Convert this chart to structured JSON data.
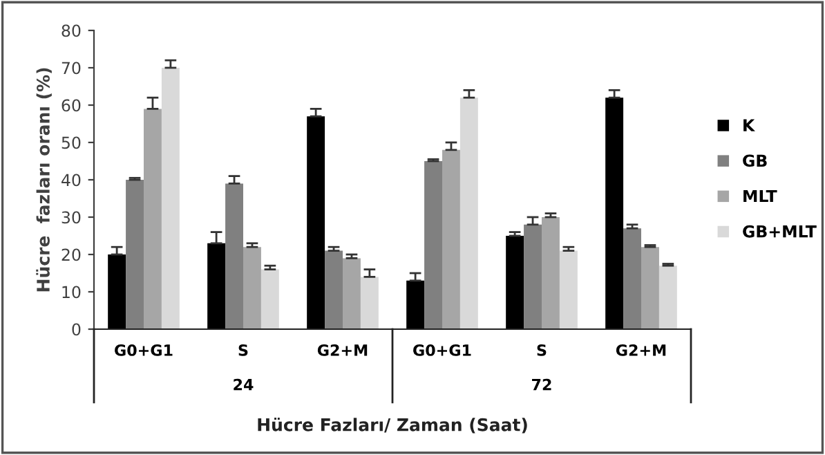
{
  "chart_data": {
    "type": "bar",
    "xlabel": "Hücre Fazları/ Zaman (Saat)",
    "ylabel": "Hücre  fazları oranı (%)",
    "categories": [
      "G0+G1",
      "S",
      "G2+M",
      "G0+G1",
      "S",
      "G2+M"
    ],
    "annotations": [
      "24",
      "72"
    ],
    "series": [
      {
        "name": "K",
        "color": "#000000",
        "values": [
          20,
          23,
          57,
          13,
          25,
          62
        ],
        "errors": [
          2,
          3,
          2,
          2,
          1,
          2
        ]
      },
      {
        "name": "GB",
        "color": "#808080",
        "values": [
          40,
          39,
          21,
          45,
          28,
          27
        ],
        "errors": [
          0.5,
          2,
          1,
          0.5,
          2,
          1
        ]
      },
      {
        "name": "MLT",
        "color": "#a6a6a6",
        "values": [
          59,
          22,
          19,
          48,
          30,
          22
        ],
        "errors": [
          3,
          1,
          1,
          2,
          1,
          0.5
        ]
      },
      {
        "name": "GB+MLT",
        "color": "#d9d9d9",
        "values": [
          70,
          16,
          14,
          62,
          21,
          17
        ],
        "errors": [
          2,
          1,
          2,
          2,
          1,
          0.5
        ]
      }
    ],
    "ylim": [
      0,
      80
    ],
    "yticks": [
      0,
      10,
      20,
      30,
      40,
      50,
      60,
      70,
      80
    ],
    "grid": false,
    "legend": "right"
  }
}
